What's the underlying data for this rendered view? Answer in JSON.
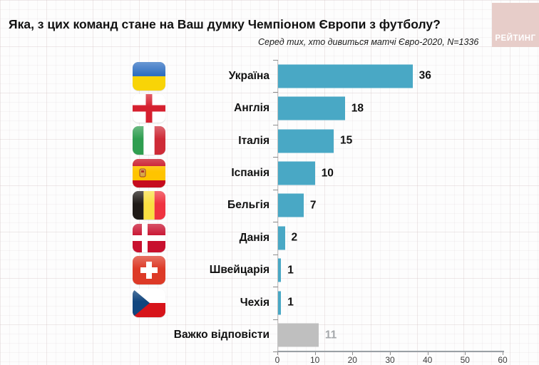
{
  "header": {
    "title": "Яка, з цих команд стане на Ваш думку Чемпіоном Європи з футболу?",
    "subtitle": "Серед тих, хто дивиться матчі Євро-2020, N=1336",
    "logo_text": "РЕЙТИНГ",
    "logo_bg": "#e7cdc9"
  },
  "chart_data": {
    "type": "bar",
    "orientation": "horizontal",
    "title": "Яка, з цих команд стане на Ваш думку Чемпіоном Європи з футболу?",
    "subtitle": "Серед тих, хто дивиться матчі Євро-2020, N=1336",
    "categories": [
      "Україна",
      "Англія",
      "Італія",
      "Іспанія",
      "Бельгія",
      "Данія",
      "Швейцарія",
      "Чехія",
      "Важко відповісти"
    ],
    "values": [
      36,
      18,
      15,
      10,
      7,
      2,
      1,
      1,
      11
    ],
    "flags": [
      "Ukraine",
      "England",
      "Italy",
      "Spain",
      "Belgium",
      "Denmark",
      "Switzerland",
      "Czechia",
      ""
    ],
    "x_ticks": [
      0,
      10,
      20,
      30,
      40,
      50,
      60
    ],
    "xlim": [
      0,
      60
    ],
    "bar_color": "#49a8c5",
    "na_bar_color": "#bfbfbf",
    "na_value_color": "#a5a8ab",
    "legend": "none",
    "grid": "faint graph-paper background",
    "value_labels": "end of bar, bold"
  }
}
